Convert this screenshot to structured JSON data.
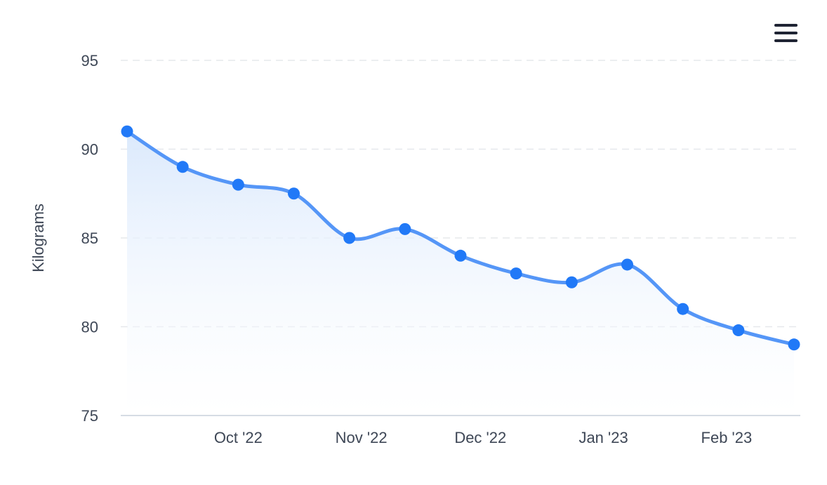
{
  "toolbar": {
    "menu_icon": "hamburger-menu-icon"
  },
  "chart_data": {
    "type": "area",
    "title": "",
    "xlabel": "",
    "ylabel": "Kilograms",
    "ylim": [
      75,
      95
    ],
    "yticks": [
      75,
      80,
      85,
      90,
      95
    ],
    "grid": true,
    "legend": "none",
    "x_tick_labels": [
      {
        "label": "Oct '22",
        "date": "2022-10-01"
      },
      {
        "label": "Nov '22",
        "date": "2022-11-01"
      },
      {
        "label": "Dec '22",
        "date": "2022-12-01"
      },
      {
        "label": "Jan '23",
        "date": "2023-01-01"
      },
      {
        "label": "Feb '23",
        "date": "2023-02-01"
      }
    ],
    "series": [
      {
        "values": [
          {
            "date": "2022-09-03",
            "y": 91.0
          },
          {
            "date": "2022-09-17",
            "y": 89.0
          },
          {
            "date": "2022-10-01",
            "y": 88.0
          },
          {
            "date": "2022-10-15",
            "y": 87.5
          },
          {
            "date": "2022-10-29",
            "y": 85.0
          },
          {
            "date": "2022-11-12",
            "y": 85.5
          },
          {
            "date": "2022-11-26",
            "y": 84.0
          },
          {
            "date": "2022-12-10",
            "y": 83.0
          },
          {
            "date": "2022-12-24",
            "y": 82.5
          },
          {
            "date": "2023-01-07",
            "y": 83.5
          },
          {
            "date": "2023-01-21",
            "y": 81.0
          },
          {
            "date": "2023-02-04",
            "y": 79.8
          },
          {
            "date": "2023-02-18",
            "y": 79.0
          }
        ]
      }
    ],
    "colors": {
      "line": "#5596f7",
      "marker": "#2179f7",
      "fill_top": "#d9e8fc",
      "grid": "#e6e8ec",
      "axis": "#c9d1dc",
      "text": "#3e4756"
    }
  }
}
